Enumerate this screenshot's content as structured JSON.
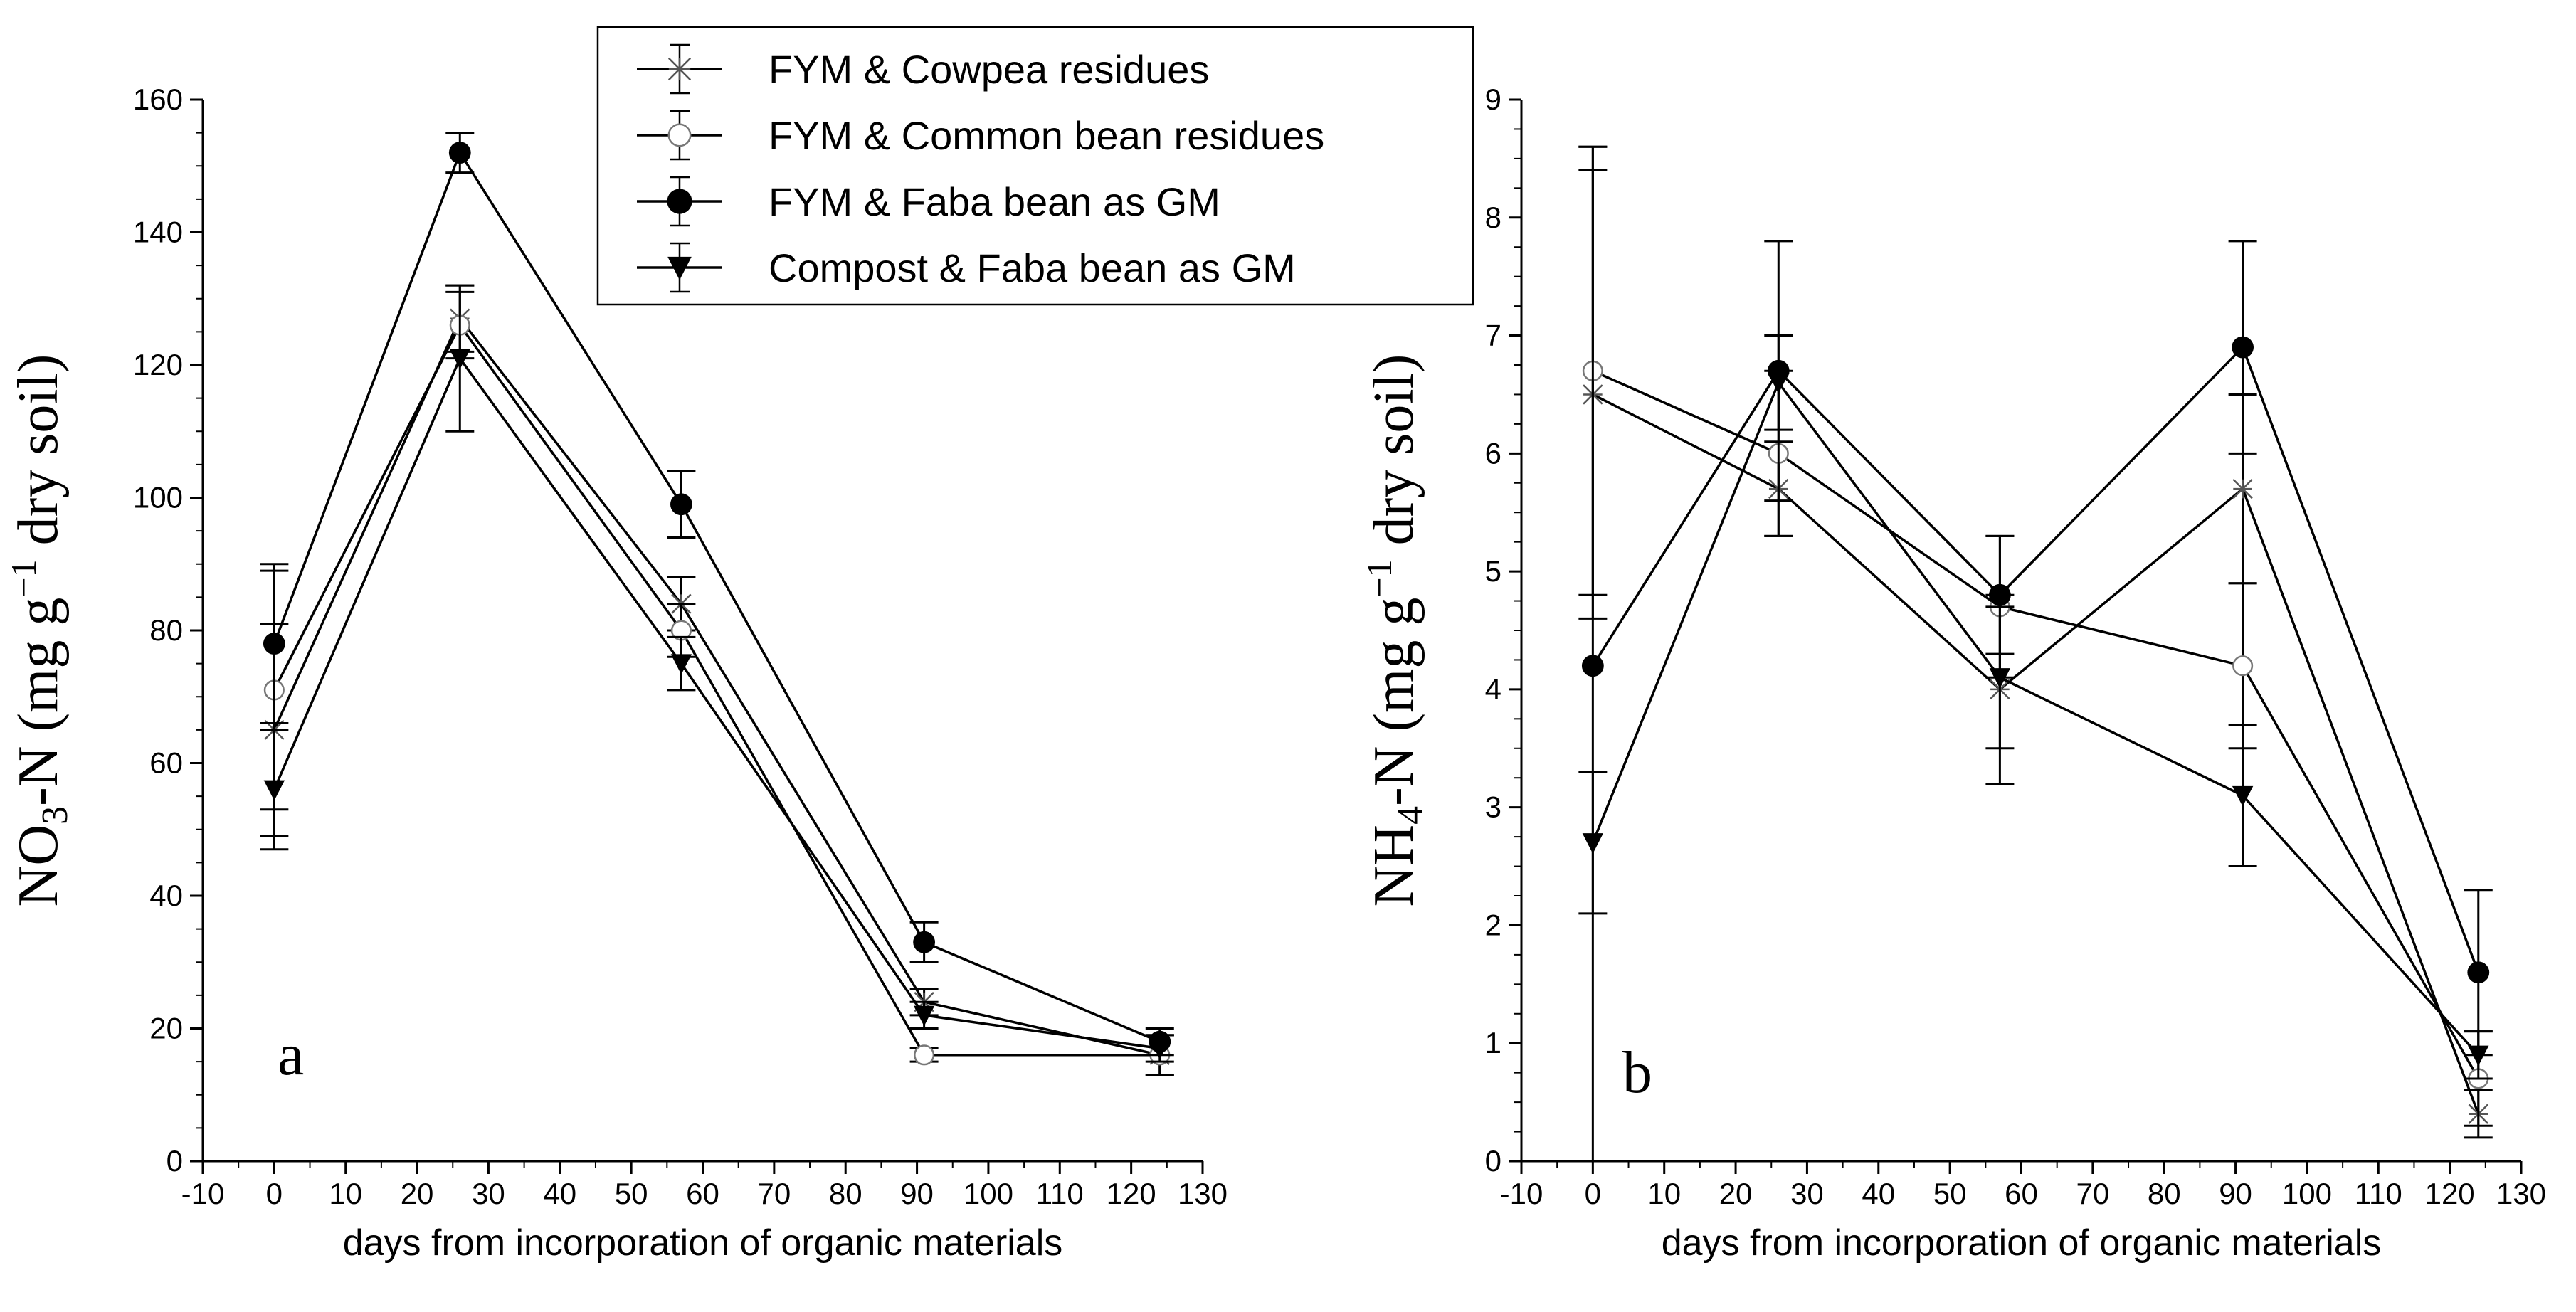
{
  "legend": {
    "entries": [
      {
        "label": "FYM & Cowpea residues",
        "marker": "star-icon"
      },
      {
        "label": "FYM & Common bean residues",
        "marker": "open-circle-icon"
      },
      {
        "label": "FYM & Faba bean as GM",
        "marker": "filled-circle-icon"
      },
      {
        "label": "Compost & Faba bean as GM",
        "marker": "filled-triangle-down-icon"
      }
    ]
  },
  "chart_data": [
    {
      "type": "line",
      "panel_label": "a",
      "title": "",
      "xlabel": "days from incorporation of organic materials",
      "ylabel_parts": [
        "NO",
        "3",
        "-N (mg g",
        "−1",
        " dry soil)"
      ],
      "xlim": [
        -10,
        130
      ],
      "ylim": [
        0,
        160
      ],
      "xticks": [
        -10,
        0,
        10,
        20,
        30,
        40,
        50,
        60,
        70,
        80,
        90,
        100,
        110,
        120,
        130
      ],
      "yticks": [
        0,
        20,
        40,
        60,
        80,
        100,
        120,
        140,
        160
      ],
      "grid": false,
      "series": [
        {
          "name": "FYM & Cowpea residues",
          "marker": "star",
          "x": [
            0,
            26,
            57,
            91,
            124
          ],
          "y": [
            65,
            127,
            84,
            24,
            16
          ],
          "err": [
            16,
            5,
            4,
            2,
            3
          ]
        },
        {
          "name": "FYM & Common bean residues",
          "marker": "open-circle",
          "x": [
            0,
            26,
            57,
            91,
            124
          ],
          "y": [
            71,
            126,
            80,
            16,
            16
          ],
          "err": [
            18,
            5,
            4,
            1,
            3
          ]
        },
        {
          "name": "FYM & Faba bean as GM",
          "marker": "filled-circle",
          "x": [
            0,
            26,
            57,
            91,
            124
          ],
          "y": [
            78,
            152,
            99,
            33,
            18
          ],
          "err": [
            12,
            3,
            5,
            3,
            2
          ]
        },
        {
          "name": "Compost & Faba bean as GM",
          "marker": "filled-triangle-down",
          "x": [
            0,
            26,
            57,
            91,
            124
          ],
          "y": [
            56,
            121,
            75,
            22,
            17
          ],
          "err": [
            9,
            11,
            4,
            2,
            2
          ]
        }
      ]
    },
    {
      "type": "line",
      "panel_label": "b",
      "title": "",
      "xlabel": "days from incorporation of organic materials",
      "ylabel_parts": [
        "NH",
        "4",
        "-N (mg g",
        "−1",
        " dry soil)"
      ],
      "xlim": [
        -10,
        130
      ],
      "ylim": [
        0,
        9
      ],
      "xticks": [
        -10,
        0,
        10,
        20,
        30,
        40,
        50,
        60,
        70,
        80,
        90,
        100,
        110,
        120,
        130
      ],
      "yticks": [
        0,
        1,
        2,
        3,
        4,
        5,
        6,
        7,
        8,
        9
      ],
      "grid": false,
      "series": [
        {
          "name": "FYM & Cowpea residues",
          "marker": "star",
          "x": [
            0,
            26,
            57,
            91,
            124
          ],
          "y": [
            6.5,
            5.7,
            4.0,
            5.7,
            0.4
          ],
          "err": [
            1.9,
            0.4,
            0.8,
            0.8,
            0.2
          ]
        },
        {
          "name": "FYM & Common bean residues",
          "marker": "open-circle",
          "x": [
            0,
            26,
            57,
            91,
            124
          ],
          "y": [
            6.7,
            6.0,
            4.7,
            4.2,
            0.7
          ],
          "err": [
            1.9,
            0.7,
            0.6,
            0.7,
            0.4
          ]
        },
        {
          "name": "FYM & Faba bean as GM",
          "marker": "filled-circle",
          "x": [
            0,
            26,
            57,
            91,
            124
          ],
          "y": [
            4.2,
            6.7,
            4.8,
            6.9,
            1.6
          ],
          "err": [
            4.4,
            1.1,
            0.5,
            0.9,
            0.7
          ]
        },
        {
          "name": "Compost & Faba bean as GM",
          "marker": "filled-triangle-down",
          "x": [
            0,
            26,
            57,
            91,
            124
          ],
          "y": [
            2.7,
            6.6,
            4.1,
            3.1,
            0.9
          ],
          "err": [
            0.6,
            0.4,
            0.6,
            0.6,
            0.2
          ]
        }
      ]
    }
  ]
}
